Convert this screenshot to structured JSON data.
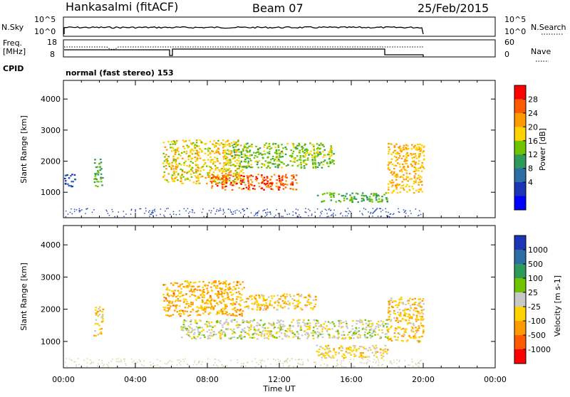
{
  "header": {
    "station": "Hankasalmi (fitACF)",
    "beam": "Beam 07",
    "date": "25/Feb/2015"
  },
  "top_panels": {
    "nsky_label": "N.Sky",
    "nsky_ticks": [
      "10^5",
      "10^0"
    ],
    "nsearch_label": "N.Search",
    "nsearch_ticks": [
      "10^5",
      "10^0"
    ],
    "freq_label_1": "Freq.",
    "freq_label_2": "[MHz]",
    "freq_ticks": [
      "18",
      "8"
    ],
    "nave_label": "Nave",
    "nave_ticks": [
      "60",
      "0"
    ],
    "cpid_label": "CPID",
    "cpid_text": "normal (fast stereo) 153"
  },
  "x_axis": {
    "title": "Time UT",
    "ticks": [
      "00:00",
      "04:00",
      "08:00",
      "12:00",
      "16:00",
      "20:00",
      "00:00"
    ]
  },
  "power_panel": {
    "ylabel": "Slant Range [km]",
    "yticks": [
      "4000",
      "3000",
      "2000",
      "1000"
    ],
    "cbar_label": "Power [dB]",
    "cbar_ticks": [
      "28",
      "24",
      "20",
      "16",
      "12",
      "8",
      "4"
    ],
    "cbar_colors": [
      "#ff0000",
      "#ff5a00",
      "#ff9b00",
      "#ffd200",
      "#6fc400",
      "#2f9a5a",
      "#2b6ea8",
      "#1c35b4",
      "#0000ff"
    ]
  },
  "velocity_panel": {
    "ylabel": "Slant Range [km]",
    "yticks": [
      "4000",
      "3000",
      "2000",
      "1000"
    ],
    "cbar_label": "Velocity [m s-1]",
    "cbar_ticks": [
      "1000",
      "500",
      "100",
      "25",
      "-25",
      "-100",
      "-500",
      "-1000"
    ],
    "cbar_colors": [
      "#1c35b4",
      "#2b6ea8",
      "#2f9a5a",
      "#6fc400",
      "#c8c8c8",
      "#ffd200",
      "#ff9b00",
      "#ff5a00",
      "#ff0000"
    ]
  },
  "chart_data": [
    {
      "type": "heatmap",
      "title": "Power",
      "xlabel": "Time UT",
      "ylabel": "Slant Range [km]",
      "xlim": [
        "00:00",
        "24:00"
      ],
      "ylim": [
        180,
        4600
      ],
      "colorbar": {
        "label": "Power [dB]",
        "range": [
          0,
          32
        ]
      },
      "echo_regions": [
        {
          "time_start": "00:00",
          "time_end": "00:40",
          "range_km": [
            1200,
            1600
          ],
          "power_db": 6
        },
        {
          "time_start": "01:40",
          "time_end": "02:10",
          "range_km": [
            1200,
            2100
          ],
          "power_db": 14
        },
        {
          "time_start": "05:30",
          "time_end": "10:00",
          "range_km": [
            1300,
            2700
          ],
          "power_db": 20
        },
        {
          "time_start": "08:00",
          "time_end": "13:00",
          "range_km": [
            1100,
            1600
          ],
          "power_db": 28
        },
        {
          "time_start": "09:00",
          "time_end": "15:00",
          "range_km": [
            1800,
            2600
          ],
          "power_db": 16
        },
        {
          "time_start": "14:00",
          "time_end": "18:00",
          "range_km": [
            700,
            1000
          ],
          "power_db": 14
        },
        {
          "time_start": "18:00",
          "time_end": "20:00",
          "range_km": [
            1000,
            2600
          ],
          "power_db": 22
        }
      ]
    },
    {
      "type": "heatmap",
      "title": "Velocity",
      "xlabel": "Time UT",
      "ylabel": "Slant Range [km]",
      "xlim": [
        "00:00",
        "24:00"
      ],
      "ylim": [
        180,
        4600
      ],
      "colorbar": {
        "label": "Velocity [m s-1]",
        "range": [
          -1000,
          1000
        ]
      },
      "echo_regions": [
        {
          "time_start": "01:40",
          "time_end": "02:10",
          "range_km": [
            1200,
            2100
          ],
          "velocity": -200
        },
        {
          "time_start": "05:30",
          "time_end": "10:00",
          "range_km": [
            1800,
            2900
          ],
          "velocity": -400
        },
        {
          "time_start": "06:30",
          "time_end": "18:00",
          "range_km": [
            1100,
            1700
          ],
          "velocity": 0
        },
        {
          "time_start": "10:00",
          "time_end": "14:00",
          "range_km": [
            2000,
            2500
          ],
          "velocity": -300
        },
        {
          "time_start": "14:00",
          "time_end": "18:00",
          "range_km": [
            500,
            900
          ],
          "velocity": -200
        },
        {
          "time_start": "18:00",
          "time_end": "20:00",
          "range_km": [
            1000,
            2400
          ],
          "velocity": -300
        }
      ]
    }
  ]
}
